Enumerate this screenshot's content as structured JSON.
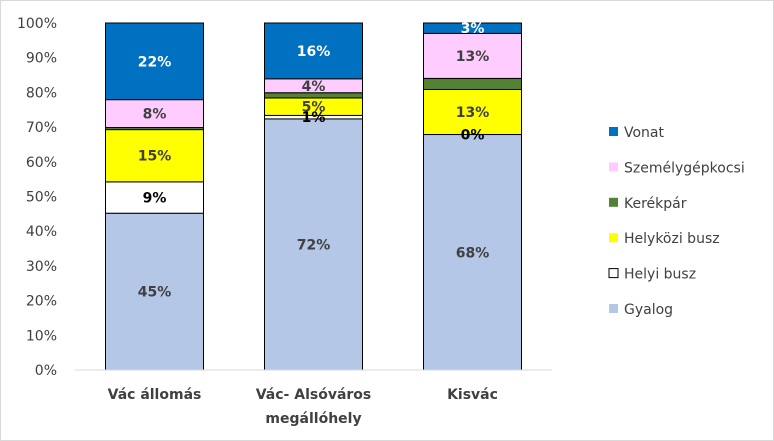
{
  "chart_data": {
    "type": "bar",
    "stacked": true,
    "percent_axis": true,
    "categories": [
      [
        "Vác állomás"
      ],
      [
        "Vác- Alsóváros",
        "megállóhely"
      ],
      [
        "Kisvác"
      ]
    ],
    "ylim": [
      0,
      100
    ],
    "yticks": [
      "0%",
      "10%",
      "20%",
      "30%",
      "40%",
      "50%",
      "60%",
      "70%",
      "80%",
      "90%",
      "100%"
    ],
    "grid": false,
    "legend_position": "right",
    "series": [
      {
        "name": "Gyalog",
        "color": "#b4c7e7",
        "values": [
          45,
          72,
          68
        ],
        "labels": [
          "45%",
          "72%",
          "68%"
        ],
        "label_color": "#404040"
      },
      {
        "name": "Helyi busz",
        "color": "#ffffff",
        "values": [
          9,
          1,
          0
        ],
        "labels": [
          "9%",
          "1%",
          "0%"
        ],
        "label_color": "#000000"
      },
      {
        "name": "Helyközi busz",
        "color": "#ffff00",
        "values": [
          15,
          5,
          13
        ],
        "labels": [
          "15%",
          "5%",
          "13%"
        ],
        "label_color": "#404040"
      },
      {
        "name": "Kerékpár",
        "color": "#548235",
        "values": [
          0.6,
          1.5,
          3.2
        ],
        "labels": [
          "",
          "",
          ""
        ],
        "label_color": "#404040"
      },
      {
        "name": "Személygépkocsi",
        "color": "#ffccff",
        "values": [
          8,
          4,
          13
        ],
        "labels": [
          "8%",
          "4%",
          "13%"
        ],
        "label_color": "#404040"
      },
      {
        "name": "Vonat",
        "color": "#0070c0",
        "values": [
          22,
          16,
          3
        ],
        "labels": [
          "22%",
          "16%",
          "3%"
        ],
        "label_color": "#ffffff"
      }
    ]
  }
}
